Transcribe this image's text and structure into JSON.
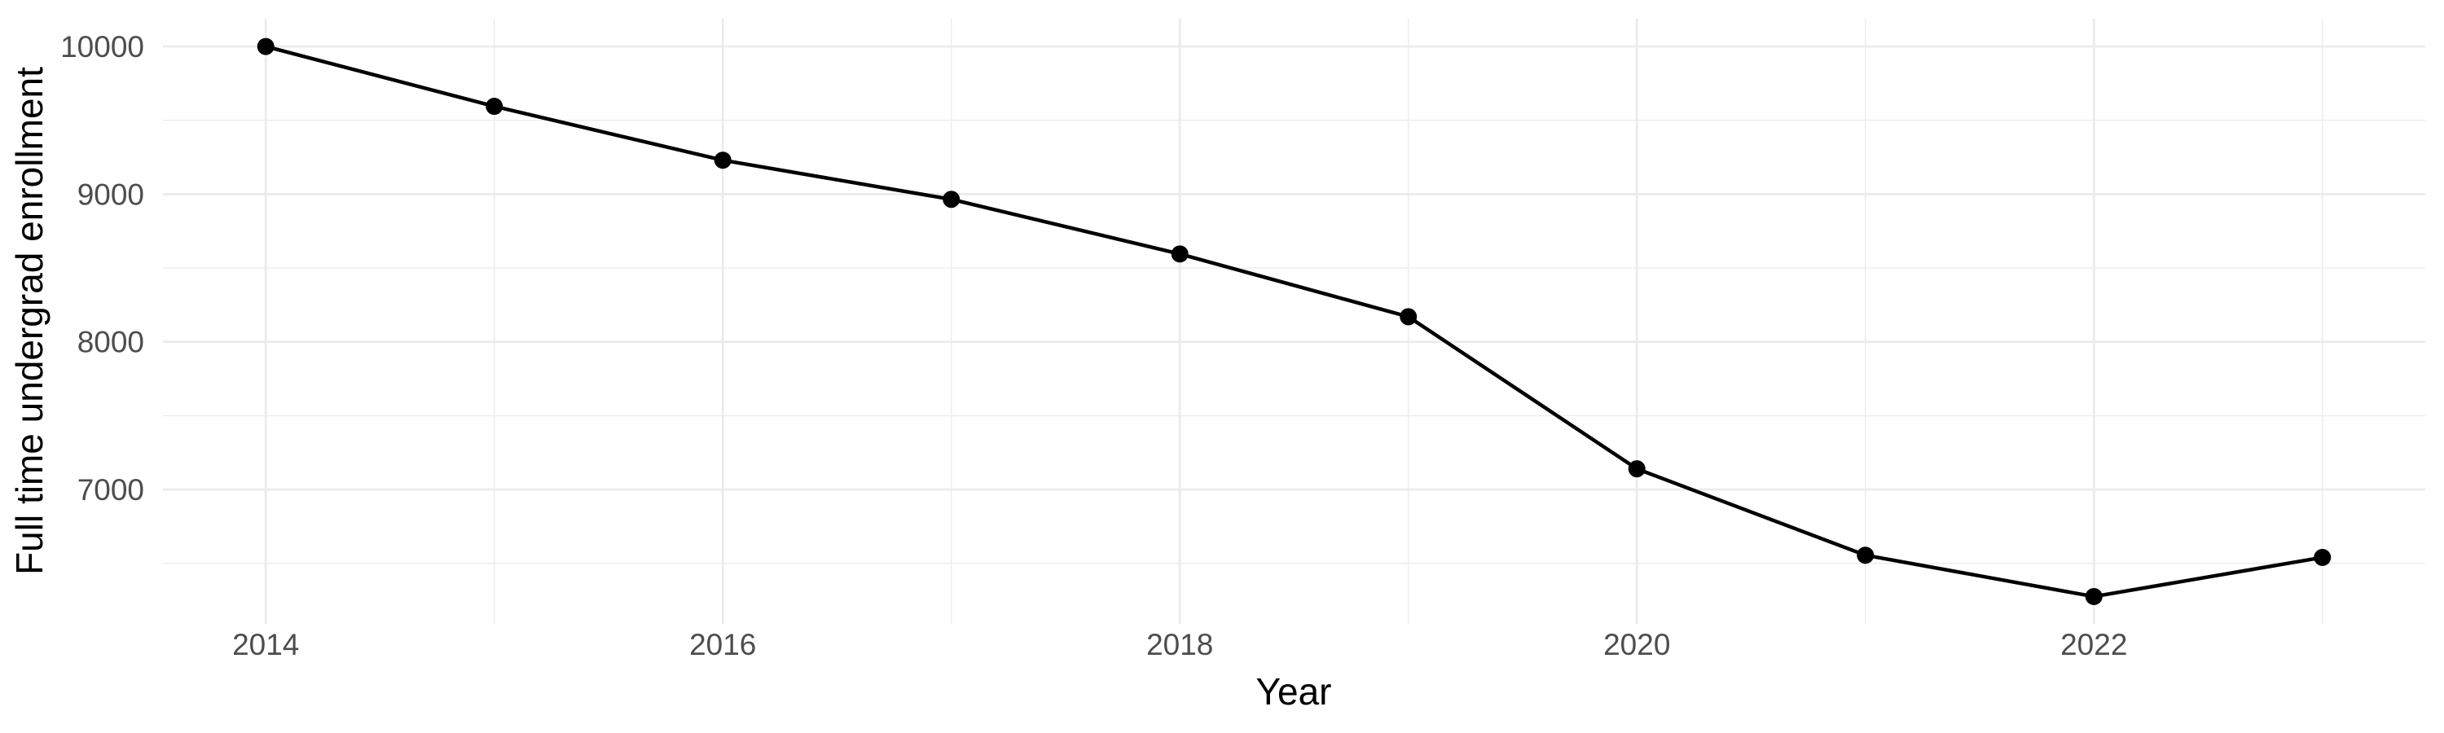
{
  "chart_data": {
    "type": "line",
    "title": "",
    "xlabel": "Year",
    "ylabel": "Full time undergrad enrollment",
    "series": [
      {
        "name": "Full time undergrad enrollment",
        "x": [
          2014,
          2015,
          2016,
          2017,
          2018,
          2019,
          2020,
          2021,
          2022,
          2023
        ],
        "values": [
          10000,
          9595,
          9230,
          8965,
          8595,
          8170,
          7140,
          6555,
          6275,
          6540
        ]
      }
    ],
    "xlim": [
      2013.55,
      2023.45
    ],
    "ylim": [
      6090,
      10188
    ],
    "x_major_ticks": [
      2014,
      2016,
      2018,
      2020,
      2022
    ],
    "x_major_tick_labels": [
      "2014",
      "2016",
      "2018",
      "2020",
      "2022"
    ],
    "x_minor_ticks": [
      2015,
      2017,
      2019,
      2021,
      2023
    ],
    "y_major_ticks": [
      7000,
      8000,
      9000,
      10000
    ],
    "y_major_tick_labels": [
      "7000",
      "8000",
      "9000",
      "10000"
    ],
    "y_minor_ticks": [
      6500,
      7500,
      8500,
      9500
    ],
    "grid": true,
    "legend": "none",
    "marker": "filled-circle",
    "colors": {
      "line": "#000000",
      "point": "#000000",
      "grid_major": "#EBEBEB",
      "grid_minor": "#EDEDED",
      "tick_label": "#4D4D4D",
      "axis_title": "#000000",
      "background": "#FFFFFF"
    }
  }
}
